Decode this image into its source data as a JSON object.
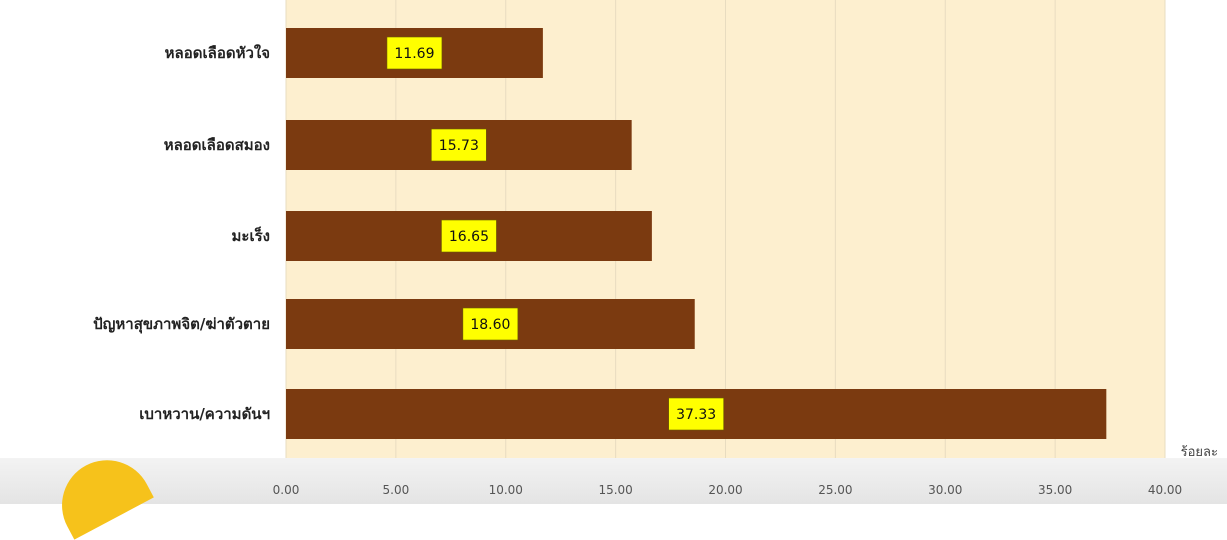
{
  "chart_data": {
    "type": "bar",
    "orientation": "horizontal",
    "categories": [
      "หลอดเลือดหัวใจ",
      "หลอดเลือดสมอง",
      "มะเร็ง",
      "ปัญหาสุขภาพจิต/ฆ่าตัวตาย",
      "เบาหวาน/ความดันฯ"
    ],
    "values": [
      11.69,
      15.73,
      16.65,
      18.6,
      37.33
    ],
    "value_labels": [
      "11.69",
      "15.73",
      "16.65",
      "18.60",
      "37.33"
    ],
    "xlim": [
      0,
      40
    ],
    "xticks": [
      "0.00",
      "5.00",
      "10.00",
      "15.00",
      "20.00",
      "25.00",
      "30.00",
      "35.00",
      "40.00"
    ],
    "xlabel": "ร้อยละ",
    "grid": true,
    "colors": {
      "bar": "#7b3a10",
      "plot_background": "#fdefcf",
      "label_box": "#ffff00",
      "gridline": "#e8dcc0"
    }
  }
}
